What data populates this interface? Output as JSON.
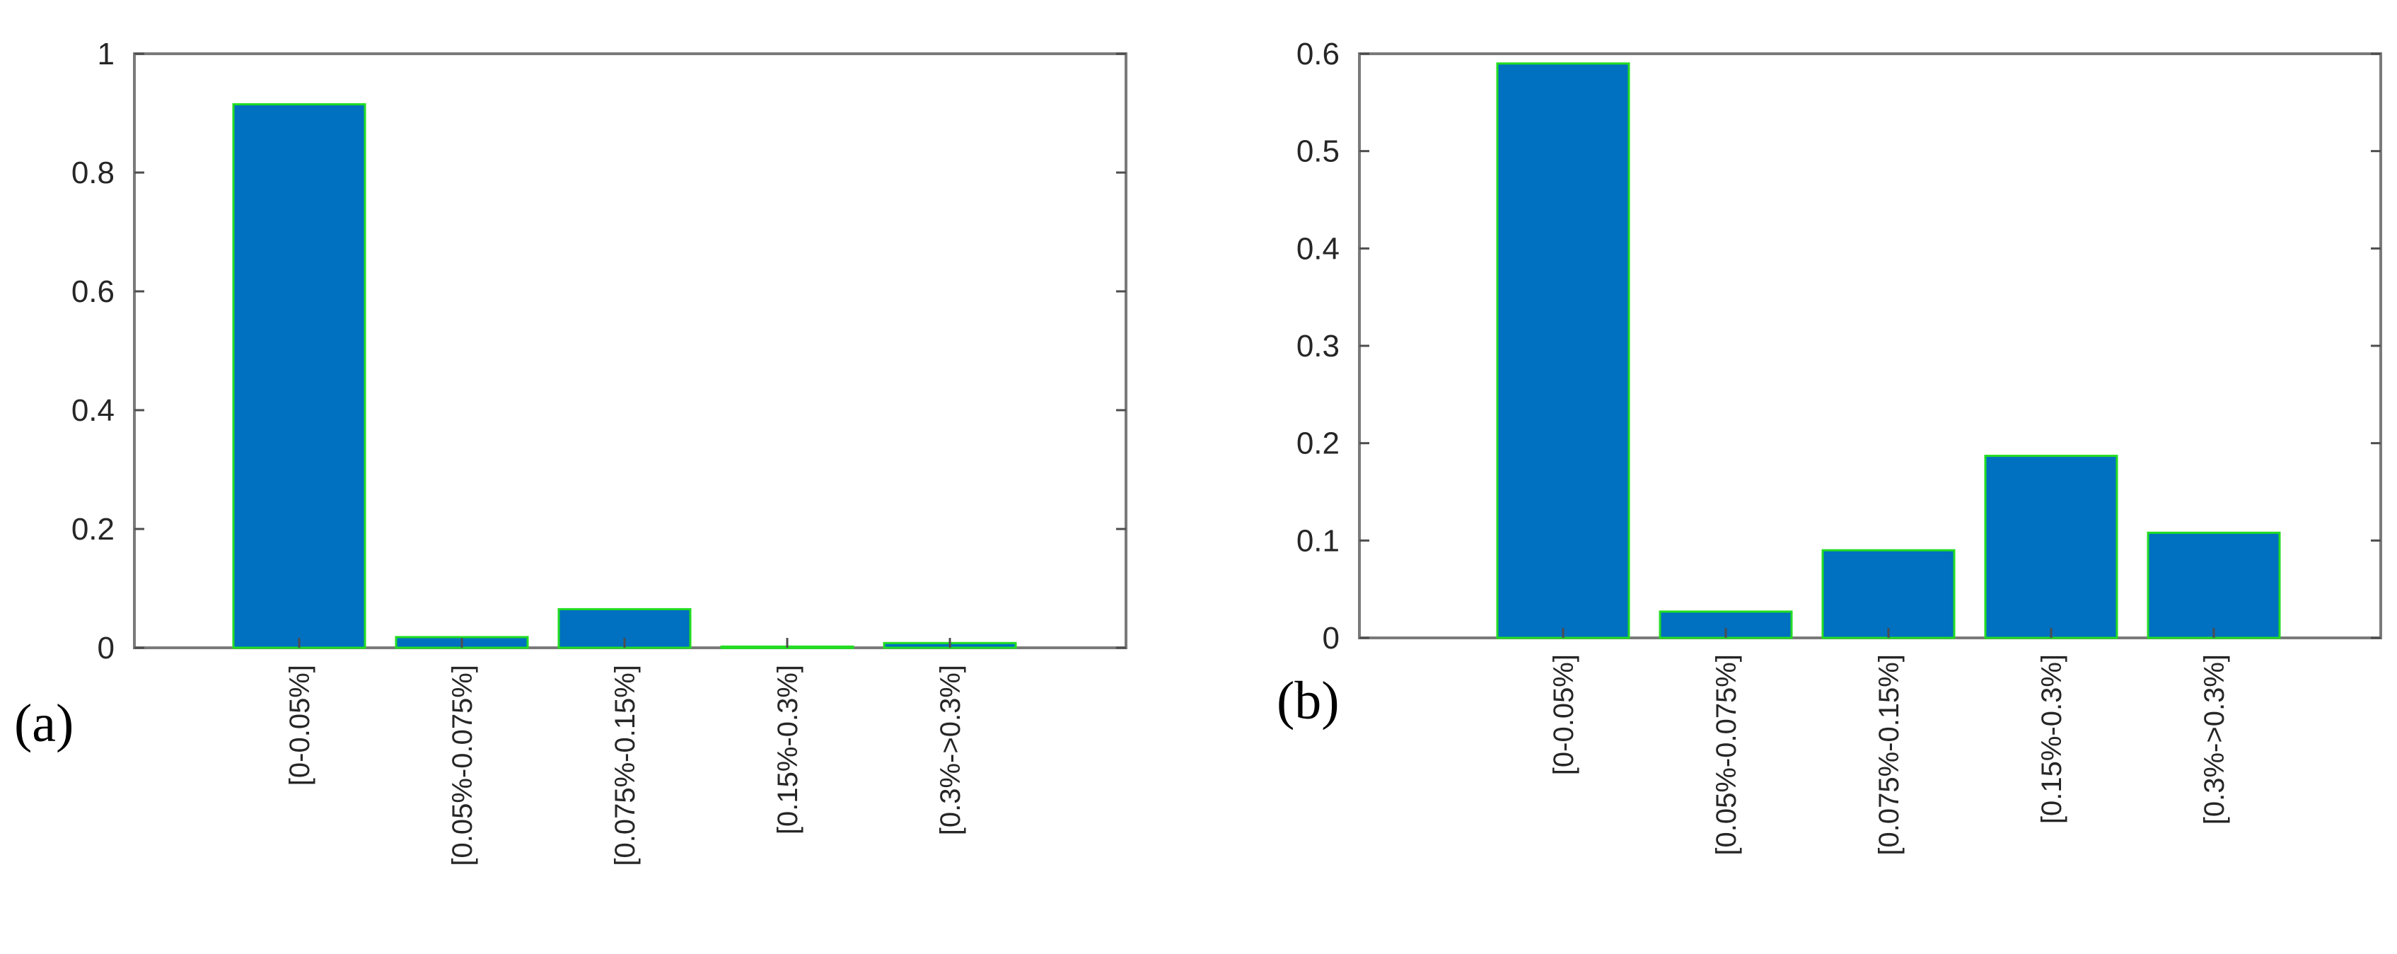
{
  "colors": {
    "bar_fill": "#0070C0",
    "bar_edge": "#22DD22",
    "axes": "#7A7A7A",
    "text": "#262626"
  },
  "chart_data": [
    {
      "type": "bar",
      "panel_label": "(a)",
      "categories": [
        "[0-0.05%]",
        "[0.05%-0.075%]",
        "[0.075%-0.15%]",
        "[0.15%-0.3%]",
        "[0.3%->0.3%]"
      ],
      "values": [
        0.915,
        0.018,
        0.065,
        0.002,
        0.008
      ],
      "ylim": [
        0,
        1
      ],
      "yticks": [
        0,
        0.2,
        0.4,
        0.6,
        0.8,
        1
      ],
      "ytick_labels": [
        "0",
        "0.2",
        "0.4",
        "0.6",
        "0.8",
        "1"
      ],
      "title": "",
      "xlabel": "",
      "ylabel": "",
      "grid": false,
      "legend": false
    },
    {
      "type": "bar",
      "panel_label": "(b)",
      "categories": [
        "[0-0.05%]",
        "[0.05%-0.075%]",
        "[0.075%-0.15%]",
        "[0.15%-0.3%]",
        "[0.3%->0.3%]"
      ],
      "values": [
        0.59,
        0.027,
        0.09,
        0.187,
        0.108
      ],
      "ylim": [
        0,
        0.6
      ],
      "yticks": [
        0,
        0.1,
        0.2,
        0.3,
        0.4,
        0.5,
        0.6
      ],
      "ytick_labels": [
        "0",
        "0.1",
        "0.2",
        "0.3",
        "0.4",
        "0.5",
        "0.6"
      ],
      "title": "",
      "xlabel": "",
      "ylabel": "",
      "grid": false,
      "legend": false
    }
  ]
}
